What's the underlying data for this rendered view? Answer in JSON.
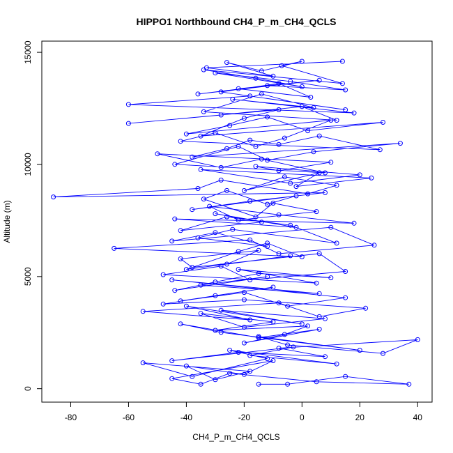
{
  "chart_data": {
    "type": "line",
    "title": "HIPPO1 Northbound CH4_P_m_CH4_QCLS",
    "xlabel": "CH4_P_m_CH4_QCLS",
    "ylabel": "Altitude (m)",
    "xlim": [
      -90,
      45
    ],
    "ylim": [
      -600,
      15500
    ],
    "x_ticks": [
      "-80",
      "-60",
      "-40",
      "-20",
      "0",
      "20",
      "40"
    ],
    "y_ticks": [
      "0",
      "5000",
      "10000",
      "15000"
    ],
    "grid": false,
    "legend": "none",
    "series_color": "#0000ff",
    "markers": "open-circle",
    "x": [
      -15,
      -5,
      15,
      37,
      5,
      -25,
      -35,
      -45,
      -10,
      -20,
      -40,
      -30,
      -18,
      -55,
      -38,
      -12,
      -25,
      12,
      -18,
      -3,
      -45,
      -22,
      8,
      -8,
      40,
      28,
      -5,
      -15,
      20,
      -28,
      -42,
      -15,
      6,
      -20,
      -6,
      2,
      -30,
      -10,
      -35,
      -20,
      8,
      -28,
      0,
      -40,
      -18,
      -55,
      -8,
      6,
      22,
      -20,
      -48,
      -30,
      -10,
      -42,
      -20,
      -5,
      15,
      -45,
      6,
      -35,
      -12,
      -44,
      -30,
      -15,
      10,
      -22,
      5,
      -48,
      -28,
      -18,
      15,
      6,
      -38,
      -42,
      -15,
      -26,
      -4,
      -40,
      -22,
      -12,
      0,
      -65,
      -18,
      -8,
      25,
      10,
      -45,
      -30,
      -12,
      -36,
      -24,
      12,
      -4,
      -26,
      -42,
      -14,
      -30,
      -2,
      -44,
      18,
      -8,
      -32,
      -22,
      5,
      -10,
      -16,
      -34,
      -26,
      -12,
      -2,
      -38,
      -18,
      8,
      -86,
      -36,
      -28,
      2,
      12,
      -6,
      -20,
      6,
      -2,
      24,
      -35,
      -4,
      20,
      -16,
      -8,
      10,
      -50,
      -28,
      -14,
      8,
      -44,
      -22,
      -12,
      4,
      34,
      -38,
      -26,
      -18,
      -8,
      6,
      27,
      -42,
      -30,
      -16,
      -6,
      10,
      -40,
      -25,
      -12,
      2,
      28,
      -35,
      -20,
      -8,
      -60,
      -28,
      0,
      12,
      -34,
      -14,
      4,
      -24,
      18,
      -60,
      -18,
      15,
      -28,
      -8,
      3,
      -22,
      6,
      -36,
      -12,
      15,
      -4,
      -30,
      0,
      -16,
      -34,
      14,
      -7,
      0,
      -14,
      -26,
      -10,
      -33,
      14
    ]
  }
}
